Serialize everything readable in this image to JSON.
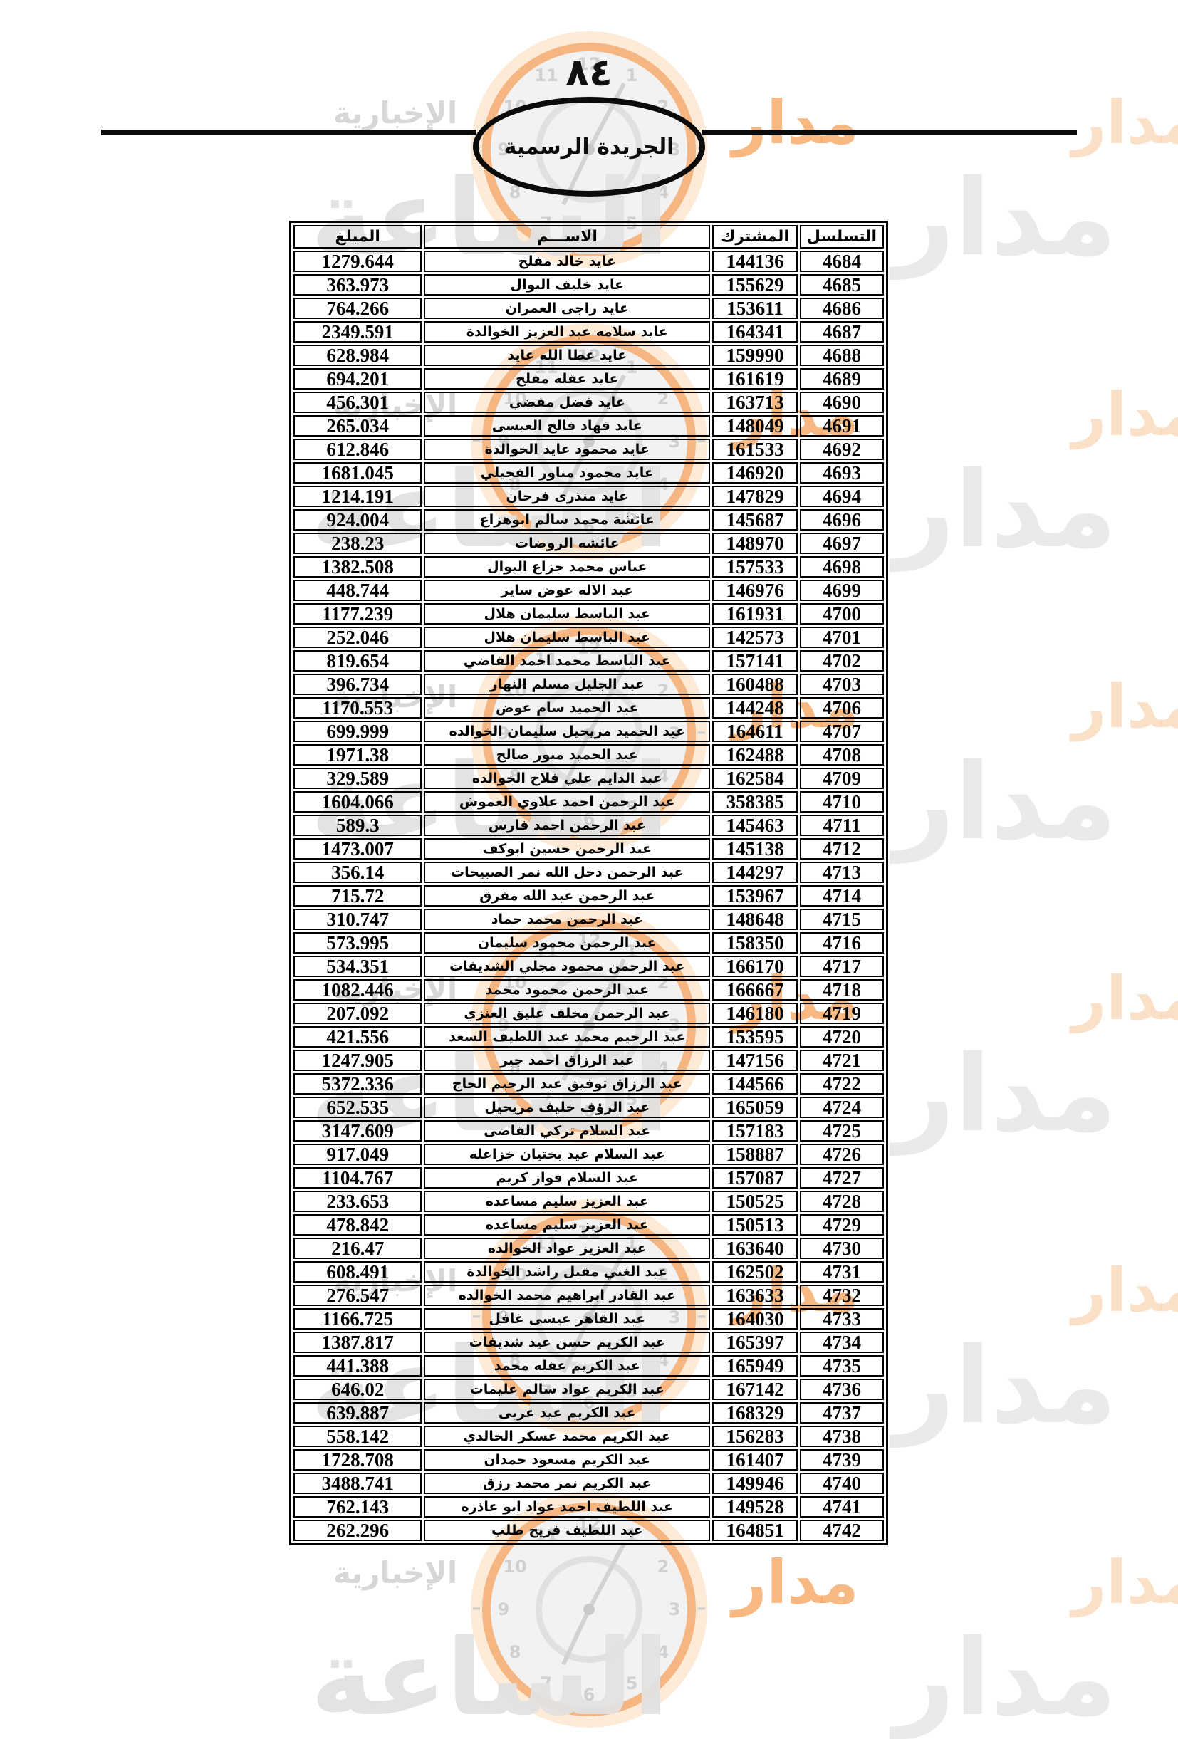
{
  "page": {
    "page_number": "٨٤",
    "gazette_title": "الجريدة الرسمية"
  },
  "watermark": {
    "brand_word_right": "مدار",
    "brand_word_big": "الساعة",
    "brand_word_small": "الإخبارية",
    "clock_numbers": [
      "1",
      "2",
      "3",
      "4",
      "5",
      "6",
      "7",
      "8",
      "9",
      "10",
      "11",
      "12"
    ],
    "accent_orange": "#f6a661",
    "light_gray": "#e2e2e2"
  },
  "table": {
    "headers": [
      "التسلسل",
      "المشترك",
      "الاســـم",
      "المبلغ"
    ],
    "rows": [
      [
        "4684",
        "144136",
        "عايد خالد مفلح",
        "1279.644"
      ],
      [
        "4685",
        "155629",
        "عايد خليف  البوال",
        "363.973"
      ],
      [
        "4686",
        "153611",
        "عايد راجى العمران",
        "764.266"
      ],
      [
        "4687",
        "164341",
        "عايد سلامه عبد العزيز الخوالدة",
        "2349.591"
      ],
      [
        "4688",
        "159990",
        "عايد عطا الله عايد",
        "628.984"
      ],
      [
        "4689",
        "161619",
        "عايد عقله مفلح",
        "694.201"
      ],
      [
        "4690",
        "163713",
        "عايد فضل مفضي",
        "456.301"
      ],
      [
        "4691",
        "148049",
        "عايد فهاد فالح العيسى",
        "265.034"
      ],
      [
        "4692",
        "161533",
        "عايد محمود عايد الخوالدة",
        "612.846"
      ],
      [
        "4693",
        "146920",
        "عايد محمود مناور الفجيلي",
        "1681.045"
      ],
      [
        "4694",
        "147829",
        "عايد منذرى فرحان",
        "1214.191"
      ],
      [
        "4696",
        "145687",
        "عائشة محمد سالم ابوهزاع",
        "924.004"
      ],
      [
        "4697",
        "148970",
        "عائشه الروضات",
        "238.23"
      ],
      [
        "4698",
        "157533",
        "عباس محمد جزاع البوال",
        "1382.508"
      ],
      [
        "4699",
        "146976",
        "عبد الاله عوض ساير",
        "448.744"
      ],
      [
        "4700",
        "161931",
        "عبد الباسط سليمان هلال",
        "1177.239"
      ],
      [
        "4701",
        "142573",
        "عبد الباسط سليمان هلال",
        "252.046"
      ],
      [
        "4702",
        "157141",
        "عبد الباسط محمد احمد القاضي",
        "819.654"
      ],
      [
        "4703",
        "160488",
        "عبد الجليل مسلم النهار",
        "396.734"
      ],
      [
        "4706",
        "144248",
        "عبد الحميد سام عوض",
        "1170.553"
      ],
      [
        "4707",
        "164611",
        "عبد الحميد مريحيل سليمان الخوالده",
        "699.999"
      ],
      [
        "4708",
        "162488",
        "عبد الحميد منور صالح",
        "1971.38"
      ],
      [
        "4709",
        "162584",
        "عبد الدايم علي فلاح الخوالده",
        "329.589"
      ],
      [
        "4710",
        "358385",
        "عبد الرحمن احمد علاوي العموش",
        "1604.066"
      ],
      [
        "4711",
        "145463",
        "عبد الرحمن احمد فارس",
        "589.3"
      ],
      [
        "4712",
        "145138",
        "عبد الرحمن حسين ابوكف",
        "1473.007"
      ],
      [
        "4713",
        "144297",
        "عبد الرحمن دخل الله نمر الصبيحات",
        "356.14"
      ],
      [
        "4714",
        "153967",
        "عبد الرحمن عبد الله مفرق",
        "715.72"
      ],
      [
        "4715",
        "148648",
        "عبد الرحمن محمد حماد",
        "310.747"
      ],
      [
        "4716",
        "158350",
        "عبد الرحمن محمود سليمان",
        "573.995"
      ],
      [
        "4717",
        "166170",
        "عبد الرحمن محمود مجلي الشديفات",
        "534.351"
      ],
      [
        "4718",
        "166667",
        "عبد الرحمن محمود محمد",
        "1082.446"
      ],
      [
        "4719",
        "146180",
        "عبد الرحمن مخلف عليق العنزي",
        "207.092"
      ],
      [
        "4720",
        "153595",
        "عبد الرحيم محمد عبد اللطيف السعد",
        "421.556"
      ],
      [
        "4721",
        "147156",
        "عبد الرزاق احمد جبر",
        "1247.905"
      ],
      [
        "4722",
        "144566",
        "عبد الرزاق توفيق عبد الرحيم الحاج",
        "5372.336"
      ],
      [
        "4724",
        "165059",
        "عبد الرؤف خليف مريحيل",
        "652.535"
      ],
      [
        "4725",
        "157183",
        "عبد السلام تركي  القاضى",
        "3147.609"
      ],
      [
        "4726",
        "158887",
        "عبد السلام عيد بختيان خزاعله",
        "917.049"
      ],
      [
        "4727",
        "157087",
        "عبد السلام فواز كريم",
        "1104.767"
      ],
      [
        "4728",
        "150525",
        "عبد العزيز سليم مساعده",
        "233.653"
      ],
      [
        "4729",
        "150513",
        "عبد العزيز سليم مساعده",
        "478.842"
      ],
      [
        "4730",
        "163640",
        "عبد العزيز عواد الخوالده",
        "216.47"
      ],
      [
        "4731",
        "162502",
        "عبد الغني مقبل راشد الخوالدة",
        "608.491"
      ],
      [
        "4732",
        "163633",
        "عبد القادر ابراهيم محمد الخوالده",
        "276.547"
      ],
      [
        "4733",
        "164030",
        "عبد القاهر عيسى غافل",
        "1166.725"
      ],
      [
        "4734",
        "165397",
        "عبد الكريم حسن عيد شديفات",
        "1387.817"
      ],
      [
        "4735",
        "165949",
        "عبد الكريم عقله محمد",
        "441.388"
      ],
      [
        "4736",
        "167142",
        "عبد الكريم عواد سالم عليمات",
        "646.02"
      ],
      [
        "4737",
        "168329",
        "عبد الكريم عيد عربى",
        "639.887"
      ],
      [
        "4738",
        "156283",
        "عبد الكريم محمد عسكر الخالدي",
        "558.142"
      ],
      [
        "4739",
        "161407",
        "عبد الكريم مسعود حمدان",
        "1728.708"
      ],
      [
        "4740",
        "149946",
        "عبد الكريم نمر محمد رزق",
        "3488.741"
      ],
      [
        "4741",
        "149528",
        "عبد اللطيف احمد عواد ابو عاذره",
        "762.143"
      ],
      [
        "4742",
        "164851",
        "عبد اللطيف فريح طلب",
        "262.296"
      ]
    ]
  }
}
